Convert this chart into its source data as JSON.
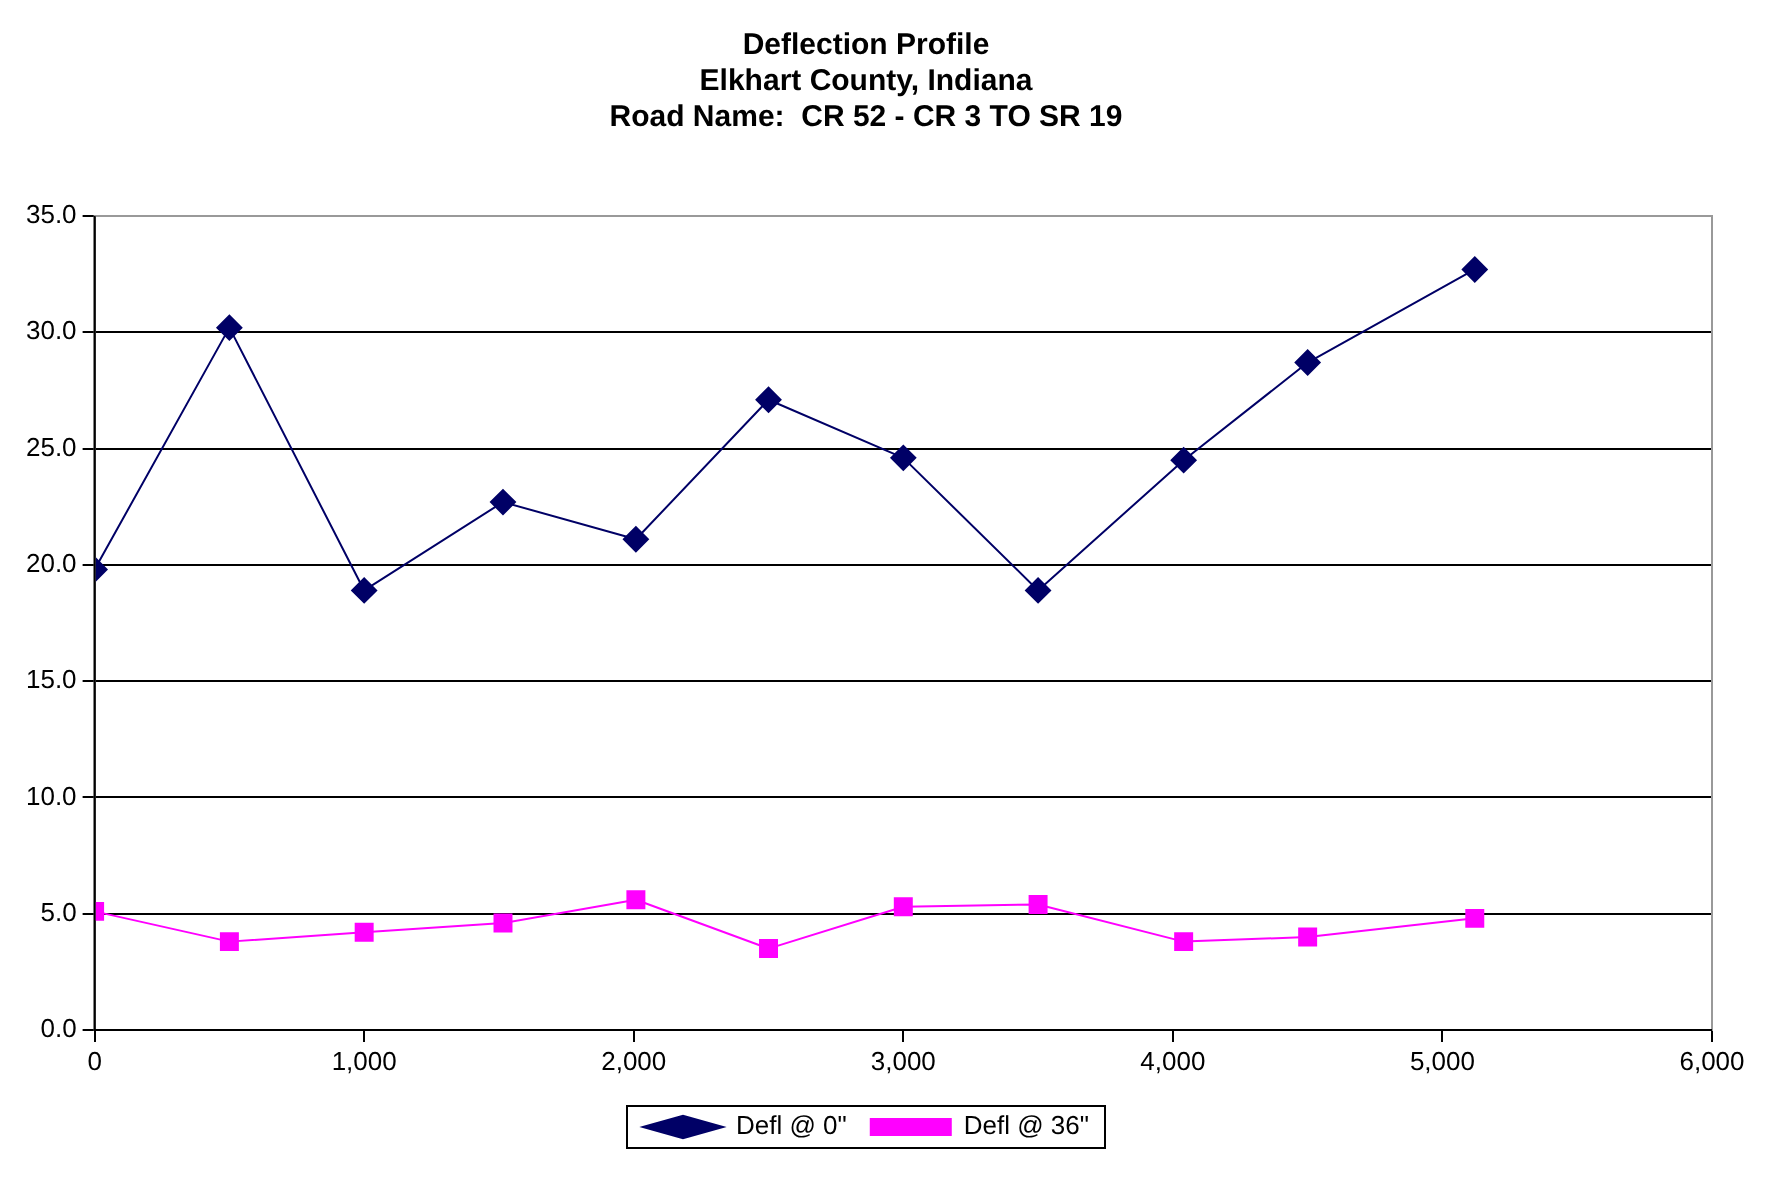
{
  "chart_data": {
    "type": "line",
    "title": "Deflection Profile",
    "subtitle": "Elkhart County, Indiana\nRoad Name:  CR 52 - CR 3 TO SR 19",
    "x": [
      0,
      500,
      1000,
      1515,
      2008,
      2500,
      3000,
      3500,
      4040,
      4500,
      5120
    ],
    "series": [
      {
        "name": "Defl @ 0\"",
        "color": "#000066",
        "marker": "diamond",
        "values": [
          19.8,
          30.2,
          18.9,
          22.7,
          21.1,
          27.1,
          24.6,
          18.9,
          24.5,
          28.7,
          32.7
        ]
      },
      {
        "name": "Defl @ 36\"",
        "color": "#ff00ff",
        "marker": "square",
        "values": [
          5.1,
          3.8,
          4.2,
          4.6,
          5.6,
          3.5,
          5.3,
          5.4,
          3.8,
          4.0,
          4.8
        ]
      }
    ],
    "xlim": [
      0,
      6000
    ],
    "xticks": [
      0,
      {
        "value": 1000,
        "label": "1,000"
      },
      {
        "value": 2000,
        "label": "2,000"
      },
      {
        "value": 3000,
        "label": "3,000"
      },
      {
        "value": 4000,
        "label": "4,000"
      },
      {
        "value": 5000,
        "label": "5,000"
      },
      {
        "value": 6000,
        "label": "6,000"
      }
    ],
    "ylim": [
      0,
      35
    ],
    "yticks": [
      {
        "value": 0,
        "label": "0.0"
      },
      {
        "value": 5,
        "label": "5.0"
      },
      {
        "value": 10,
        "label": "10.0"
      },
      {
        "value": 15,
        "label": "15.0"
      },
      {
        "value": 20,
        "label": "20.0"
      },
      {
        "value": 25,
        "label": "25.0"
      },
      {
        "value": 30,
        "label": "30.0"
      },
      {
        "value": 35,
        "label": "35.0"
      }
    ],
    "grid": "y",
    "legend": "bottom",
    "line_style": "solid"
  }
}
